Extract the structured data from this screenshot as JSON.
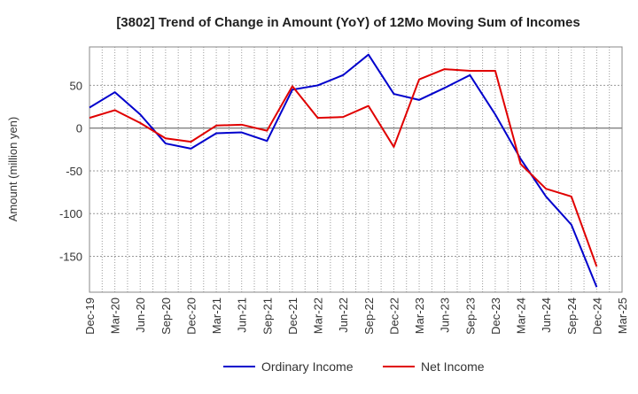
{
  "chart_data": {
    "type": "line",
    "title": "[3802]  Trend of Change in Amount (YoY) of 12Mo Moving Sum of Incomes",
    "xlabel": "",
    "ylabel": "Amount (million yen)",
    "categories": [
      "Dec-19",
      "Mar-20",
      "Jun-20",
      "Sep-20",
      "Dec-20",
      "Mar-21",
      "Jun-21",
      "Sep-21",
      "Dec-21",
      "Mar-22",
      "Jun-22",
      "Sep-22",
      "Dec-22",
      "Mar-23",
      "Jun-23",
      "Sep-23",
      "Dec-23",
      "Mar-24",
      "Jun-24",
      "Sep-24",
      "Dec-24",
      "Mar-25"
    ],
    "ylim": [
      -192,
      95
    ],
    "yticks": [
      50,
      0,
      -50,
      -100,
      -150
    ],
    "grid": true,
    "legend_position": "bottom",
    "series": [
      {
        "name": "Ordinary Income",
        "color": "#0000cc",
        "values": [
          24,
          42,
          16,
          -18,
          -24,
          -6,
          -5,
          -15,
          45,
          50,
          62,
          86,
          40,
          33,
          47,
          62,
          16,
          -36,
          -80,
          -113,
          -186,
          null
        ]
      },
      {
        "name": "Net Income",
        "color": "#e00000",
        "values": [
          12,
          21,
          6,
          -12,
          -16,
          3,
          4,
          -3,
          49,
          12,
          13,
          26,
          -22,
          57,
          69,
          67,
          67,
          -42,
          -71,
          -80,
          -162,
          null
        ]
      }
    ]
  }
}
